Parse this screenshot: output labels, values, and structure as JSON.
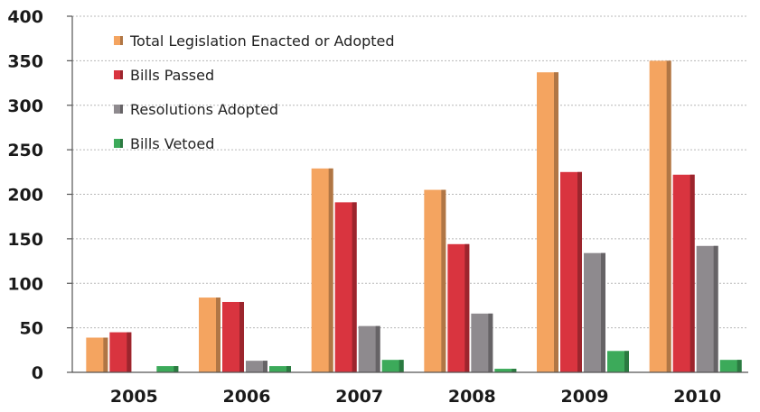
{
  "chart_data": {
    "type": "bar",
    "title": "",
    "xlabel": "",
    "ylabel": "",
    "categories": [
      "2005",
      "2006",
      "2007",
      "2008",
      "2009",
      "2010"
    ],
    "series": [
      {
        "name": "Total Legislation Enacted or Adopted",
        "color": "#f4a460",
        "values": [
          39,
          84,
          229,
          205,
          337,
          350
        ]
      },
      {
        "name": "Bills Passed",
        "color": "#d9343f",
        "values": [
          45,
          79,
          191,
          144,
          225,
          222
        ]
      },
      {
        "name": "Resolutions Adopted",
        "color": "#8e8a8e",
        "values": [
          0,
          13,
          52,
          66,
          134,
          142
        ]
      },
      {
        "name": "Bills Vetoed",
        "color": "#3caa5a",
        "values": [
          7,
          7,
          14,
          4,
          24,
          14
        ]
      }
    ],
    "ylim": [
      0,
      400
    ],
    "yticks": [
      0,
      50,
      100,
      150,
      200,
      250,
      300,
      350,
      400
    ],
    "grid": true,
    "legend": "top-left"
  }
}
